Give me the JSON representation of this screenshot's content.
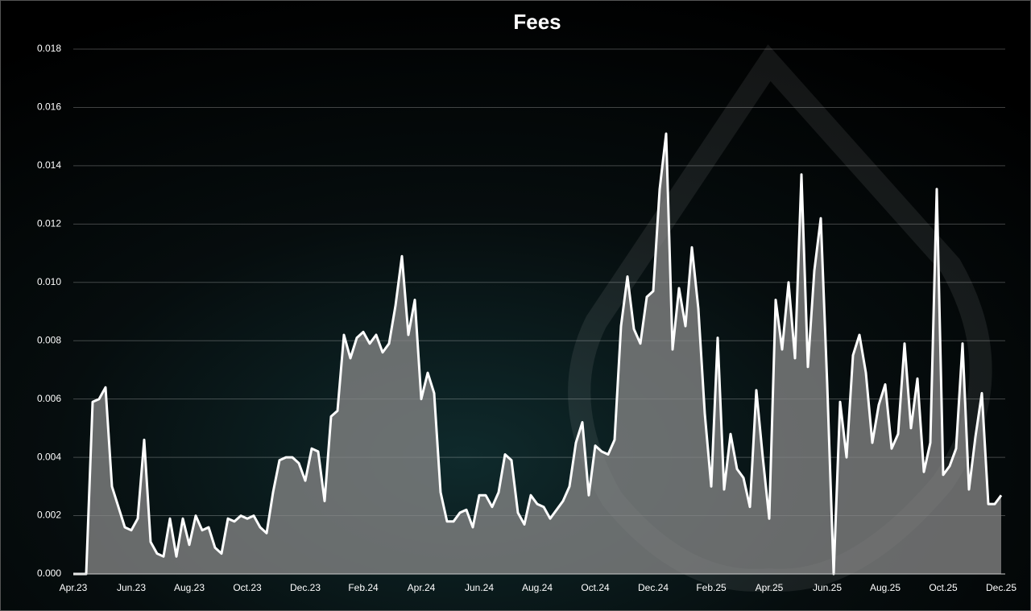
{
  "chart_data": {
    "type": "area",
    "title": "Fees",
    "categories": [
      "Apr.23",
      null,
      null,
      null,
      null,
      null,
      null,
      null,
      null,
      "Jun.23",
      null,
      null,
      null,
      null,
      null,
      null,
      null,
      null,
      "Aug.23",
      null,
      null,
      null,
      null,
      null,
      null,
      null,
      null,
      "Oct.23",
      null,
      null,
      null,
      null,
      null,
      null,
      null,
      null,
      "Dec.23",
      null,
      null,
      null,
      null,
      null,
      null,
      null,
      null,
      "Feb.24",
      null,
      null,
      null,
      null,
      null,
      null,
      null,
      null,
      "Apr.24",
      null,
      null,
      null,
      null,
      null,
      null,
      null,
      null,
      "Jun.24",
      null,
      null,
      null,
      null,
      null,
      null,
      null,
      null,
      "Aug.24",
      null,
      null,
      null,
      null,
      null,
      null,
      null,
      null,
      "Oct.24",
      null,
      null,
      null,
      null,
      null,
      null,
      null,
      null,
      "Dec.24",
      null,
      null,
      null,
      null,
      null,
      null,
      null,
      null,
      "Feb.25",
      null,
      null,
      null,
      null,
      null,
      null,
      null,
      null,
      "Apr.25",
      null,
      null,
      null,
      null,
      null,
      null,
      null,
      null,
      "Jun.25",
      null,
      null,
      null,
      null,
      null,
      null,
      null,
      null,
      "Aug.25",
      null,
      null,
      null,
      null,
      null,
      null,
      null,
      null,
      "Oct.25",
      null,
      null,
      null,
      null,
      null,
      null,
      null,
      null,
      "Dec.25"
    ],
    "values": [
      0,
      0,
      0,
      0.0059,
      0.006,
      0.0064,
      0.003,
      0.0023,
      0.0016,
      0.0015,
      0.0019,
      0.0046,
      0.0011,
      0.0007,
      0.0006,
      0.0019,
      0.0006,
      0.0019,
      0.001,
      0.002,
      0.0015,
      0.0016,
      0.0009,
      0.0007,
      0.0019,
      0.0018,
      0.002,
      0.0019,
      0.002,
      0.0016,
      0.0014,
      0.0028,
      0.0039,
      0.004,
      0.004,
      0.0038,
      0.0032,
      0.0043,
      0.0042,
      0.0025,
      0.0054,
      0.0056,
      0.0082,
      0.0074,
      0.0081,
      0.0083,
      0.0079,
      0.0082,
      0.0076,
      0.0079,
      0.0092,
      0.0109,
      0.0082,
      0.0094,
      0.006,
      0.0069,
      0.0062,
      0.0028,
      0.0018,
      0.0018,
      0.0021,
      0.0022,
      0.0016,
      0.0027,
      0.0027,
      0.0023,
      0.0028,
      0.0041,
      0.0039,
      0.0021,
      0.0017,
      0.0027,
      0.0024,
      0.0023,
      0.0019,
      0.0022,
      0.0025,
      0.003,
      0.0045,
      0.0052,
      0.0027,
      0.0044,
      0.0042,
      0.0041,
      0.0046,
      0.0085,
      0.0102,
      0.0084,
      0.0079,
      0.0095,
      0.0097,
      0.0132,
      0.0151,
      0.0077,
      0.0098,
      0.0085,
      0.0112,
      0.0091,
      0.0055,
      0.003,
      0.0081,
      0.0029,
      0.0048,
      0.0036,
      0.0033,
      0.0023,
      0.0063,
      0.004,
      0.0019,
      0.0094,
      0.0077,
      0.01,
      0.0074,
      0.0137,
      0.0071,
      0.0104,
      0.0122,
      0.0065,
      0,
      0.0059,
      0.004,
      0.0075,
      0.0082,
      0.0069,
      0.0045,
      0.0058,
      0.0065,
      0.0043,
      0.0048,
      0.0079,
      0.005,
      0.0067,
      0.0035,
      0.0045,
      0.0132,
      0.0034,
      0.0037,
      0.0043,
      0.0079,
      0.0029,
      0.0047,
      0.0062,
      0.0024,
      0.0024,
      0.0027
    ],
    "color": "#ffffff",
    "fill_color": "#8a8a8a",
    "ylim": [
      0,
      0.018
    ],
    "yticks": [
      {
        "value": 0,
        "label": "0.000"
      },
      {
        "value": 0.002,
        "label": "0.002"
      },
      {
        "value": 0.004,
        "label": "0.004"
      },
      {
        "value": 0.006,
        "label": "0.006"
      },
      {
        "value": 0.008,
        "label": "0.008"
      },
      {
        "value": 0.01,
        "label": "0.010"
      },
      {
        "value": 0.012,
        "label": "0.012"
      },
      {
        "value": 0.014,
        "label": "0.014"
      },
      {
        "value": 0.016,
        "label": "0.016"
      },
      {
        "value": 0.018,
        "label": "0.018"
      }
    ],
    "grid": true
  }
}
